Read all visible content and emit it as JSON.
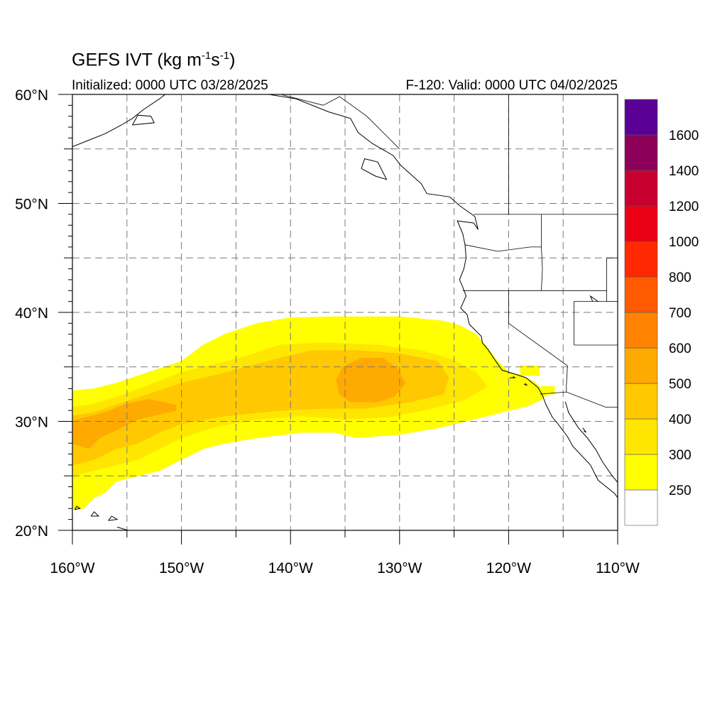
{
  "title": {
    "main": "GEFS IVT (kg m",
    "sup1": "-1",
    "mid": "s",
    "sup2": "-1",
    "close": ")"
  },
  "subtitle_left": "Initialized: 0000 UTC 03/28/2025",
  "subtitle_right": "F-120: Valid: 0000 UTC 04/02/2025",
  "map": {
    "projection": "cylindrical-equidistant",
    "lon_range": [
      -160,
      -110
    ],
    "lat_range": [
      20,
      60
    ],
    "lon_ticks": [
      -160,
      -150,
      -140,
      -130,
      -120,
      -110
    ],
    "lon_labels": [
      "160°W",
      "150°W",
      "140°W",
      "130°W",
      "120°W",
      "110°W"
    ],
    "lat_ticks": [
      20,
      30,
      40,
      50,
      60
    ],
    "lat_labels": [
      "20°N",
      "30°N",
      "40°N",
      "50°N",
      "60°N"
    ],
    "grid_lons": [
      -160,
      -155,
      -150,
      -145,
      -140,
      -135,
      -130,
      -125,
      -120,
      -115,
      -110
    ],
    "grid_lats": [
      20,
      25,
      30,
      35,
      40,
      45,
      50,
      55,
      60
    ],
    "grid_style": "dashed-gray",
    "coastline_color": "#000000"
  },
  "colorbar": {
    "levels": [
      250,
      300,
      400,
      500,
      600,
      700,
      800,
      1000,
      1200,
      1400,
      1600
    ],
    "labels": [
      "250",
      "300",
      "400",
      "500",
      "600",
      "700",
      "800",
      "1000",
      "1200",
      "1400",
      "1600"
    ],
    "colors": [
      "#ffffff",
      "#ffff00",
      "#ffe600",
      "#ffc800",
      "#ffaa00",
      "#ff8200",
      "#ff5a00",
      "#ff2800",
      "#eb0014",
      "#c80032",
      "#8c005a",
      "#5a0096"
    ]
  },
  "ivt_field": {
    "units": "kg m-1 s-1",
    "bands": [
      {
        "level": 250,
        "color": "#ffff00",
        "polygon": [
          [
            -160,
            22
          ],
          [
            -159,
            22
          ],
          [
            -158,
            23
          ],
          [
            -157,
            23.5
          ],
          [
            -156,
            24.5
          ],
          [
            -154,
            25
          ],
          [
            -152,
            25.5
          ],
          [
            -150,
            26.5
          ],
          [
            -148,
            27.5
          ],
          [
            -146,
            28
          ],
          [
            -143,
            28.5
          ],
          [
            -139,
            29
          ],
          [
            -136,
            29
          ],
          [
            -134,
            28.5
          ],
          [
            -130,
            28.8
          ],
          [
            -126,
            29.5
          ],
          [
            -122,
            30.5
          ],
          [
            -118,
            31.5
          ],
          [
            -117,
            32
          ],
          [
            -116.5,
            32.5
          ],
          [
            -117,
            33
          ],
          [
            -117.5,
            33.5
          ],
          [
            -118.8,
            34.2
          ],
          [
            -120,
            34.5
          ],
          [
            -121,
            35.5
          ],
          [
            -122,
            36.8
          ],
          [
            -123,
            38
          ],
          [
            -124.5,
            38.8
          ],
          [
            -126,
            39.2
          ],
          [
            -130,
            39.6
          ],
          [
            -136,
            39.6
          ],
          [
            -140,
            39.5
          ],
          [
            -143,
            39
          ],
          [
            -146,
            38
          ],
          [
            -148,
            37
          ],
          [
            -150,
            35.5
          ],
          [
            -153,
            34.5
          ],
          [
            -156,
            33.5
          ],
          [
            -158,
            33
          ],
          [
            -160,
            32.8
          ]
        ]
      },
      {
        "level": 300,
        "color": "#ffe600",
        "polygon": [
          [
            -160,
            25
          ],
          [
            -158,
            25.5
          ],
          [
            -156,
            26
          ],
          [
            -154,
            26.5
          ],
          [
            -152,
            27.5
          ],
          [
            -150,
            28.5
          ],
          [
            -147,
            29.5
          ],
          [
            -143,
            30.2
          ],
          [
            -139,
            30.5
          ],
          [
            -135,
            30.2
          ],
          [
            -131,
            30.4
          ],
          [
            -127,
            31.2
          ],
          [
            -124,
            32
          ],
          [
            -122,
            33.2
          ],
          [
            -123,
            34.5
          ],
          [
            -125,
            35.6
          ],
          [
            -128,
            36.5
          ],
          [
            -132,
            37
          ],
          [
            -137,
            37.2
          ],
          [
            -141,
            37
          ],
          [
            -144,
            36
          ],
          [
            -147,
            35.2
          ],
          [
            -150,
            34.5
          ],
          [
            -153,
            33.3
          ],
          [
            -156,
            32.2
          ],
          [
            -158,
            31.6
          ],
          [
            -160,
            31.3
          ]
        ]
      },
      {
        "level": 400,
        "color": "#ffc800",
        "polygon": [
          [
            -160,
            26
          ],
          [
            -158,
            26.5
          ],
          [
            -156,
            27.5
          ],
          [
            -154,
            28
          ],
          [
            -152,
            29
          ],
          [
            -150,
            29.8
          ],
          [
            -146,
            30.5
          ],
          [
            -141,
            31
          ],
          [
            -137,
            31.2
          ],
          [
            -133,
            31.2
          ],
          [
            -129,
            31.8
          ],
          [
            -126,
            32.5
          ],
          [
            -125.5,
            34
          ],
          [
            -126.5,
            35.5
          ],
          [
            -130,
            36.2
          ],
          [
            -134,
            36.5
          ],
          [
            -138,
            36.5
          ],
          [
            -141,
            35.8
          ],
          [
            -144,
            35
          ],
          [
            -147,
            34.2
          ],
          [
            -150,
            33.5
          ],
          [
            -153,
            32.5
          ],
          [
            -156,
            31.5
          ],
          [
            -158,
            30.8
          ],
          [
            -160,
            30.5
          ]
        ]
      },
      {
        "level": 500,
        "color": "#ffaa00",
        "polygon": [
          [
            -135.5,
            32.5
          ],
          [
            -134.5,
            31.8
          ],
          [
            -132,
            31.8
          ],
          [
            -130.5,
            32.3
          ],
          [
            -129.5,
            33.5
          ],
          [
            -130.2,
            34.8
          ],
          [
            -131.5,
            35.8
          ],
          [
            -133.5,
            35.8
          ],
          [
            -135.2,
            35
          ],
          [
            -135.8,
            33.8
          ]
        ]
      },
      {
        "level": 500,
        "color": "#ffaa00",
        "polygon": [
          [
            -160,
            28
          ],
          [
            -158.5,
            27.5
          ],
          [
            -157.5,
            28.5
          ],
          [
            -156,
            29.2
          ],
          [
            -154,
            30.2
          ],
          [
            -150.5,
            31
          ],
          [
            -150.5,
            31.5
          ],
          [
            -153,
            32
          ],
          [
            -155,
            31.6
          ],
          [
            -157,
            30.8
          ],
          [
            -159,
            30.3
          ],
          [
            -160,
            30
          ]
        ]
      },
      {
        "level": 250,
        "color": "#ffff00",
        "polygon": [
          [
            -118.9,
            34.2
          ],
          [
            -117.2,
            34.2
          ],
          [
            -117.2,
            35.1
          ],
          [
            -118.9,
            35.1
          ]
        ]
      },
      {
        "level": 250,
        "color": "#ffff00",
        "polygon": [
          [
            -117,
            32.5
          ],
          [
            -115.8,
            32.5
          ],
          [
            -115.8,
            33.2
          ],
          [
            -117,
            33.2
          ]
        ]
      }
    ]
  },
  "coastlines": [
    [
      [
        -124.4,
        40.4
      ],
      [
        -123.9,
        41.5
      ],
      [
        -124.2,
        42.3
      ],
      [
        -124.5,
        43
      ],
      [
        -124.1,
        44
      ],
      [
        -123.9,
        45
      ],
      [
        -124,
        46.2
      ],
      [
        -124.2,
        47.2
      ],
      [
        -124.7,
        48.4
      ],
      [
        -123.2,
        48.2
      ],
      [
        -122.8,
        47.6
      ],
      [
        -123.1,
        48.8
      ],
      [
        -124.5,
        49.8
      ],
      [
        -125.4,
        50.6
      ],
      [
        -127.5,
        50.9
      ],
      [
        -128.0,
        51.8
      ],
      [
        -129.9,
        53.5
      ],
      [
        -130.6,
        54.4
      ],
      [
        -132.5,
        55.5
      ],
      [
        -133.8,
        56.5
      ],
      [
        -134.5,
        57.8
      ],
      [
        -136.5,
        58.4
      ],
      [
        -139.5,
        59.6
      ],
      [
        -142,
        60
      ]
    ],
    [
      [
        -124.4,
        40.4
      ],
      [
        -123.8,
        39.8
      ],
      [
        -123.6,
        38.9
      ],
      [
        -122.5,
        37.8
      ],
      [
        -122.4,
        37.2
      ],
      [
        -121.9,
        36.6
      ],
      [
        -121.3,
        35.7
      ],
      [
        -120.6,
        34.7
      ],
      [
        -119.3,
        34.3
      ],
      [
        -118.4,
        34
      ],
      [
        -117.3,
        33.1
      ],
      [
        -116.9,
        32.4
      ],
      [
        -116.6,
        31.6
      ],
      [
        -116.0,
        30.4
      ],
      [
        -115.5,
        29.8
      ],
      [
        -114.6,
        28.6
      ],
      [
        -114.1,
        27.7
      ],
      [
        -112.5,
        26
      ],
      [
        -111.8,
        24.6
      ],
      [
        -110.3,
        23.4
      ],
      [
        -110,
        23
      ]
    ],
    [
      [
        -114.8,
        31.8
      ],
      [
        -114.5,
        30.8
      ],
      [
        -113.6,
        29.4
      ],
      [
        -112.8,
        28.5
      ],
      [
        -112.0,
        27.4
      ],
      [
        -111.4,
        26.3
      ],
      [
        -110.5,
        25
      ],
      [
        -110,
        24.4
      ]
    ],
    [
      [
        -160,
        55.2
      ],
      [
        -158.5,
        55.8
      ],
      [
        -157,
        56.4
      ],
      [
        -155.5,
        57.2
      ],
      [
        -154.5,
        57.8
      ],
      [
        -153.5,
        58.6
      ],
      [
        -152,
        59.6
      ],
      [
        -151.5,
        60
      ]
    ],
    [
      [
        -154.5,
        57.2
      ],
      [
        -152.5,
        57.4
      ],
      [
        -152.8,
        58.0
      ],
      [
        -154.0,
        58.1
      ],
      [
        -154.5,
        57.2
      ]
    ],
    [
      [
        -133.5,
        53.2
      ],
      [
        -132.2,
        52.5
      ],
      [
        -131.2,
        52.2
      ],
      [
        -132,
        53.8
      ],
      [
        -133.2,
        54.1
      ],
      [
        -133.5,
        53.2
      ]
    ],
    [
      [
        -155.9,
        19.9
      ],
      [
        -155.0,
        19.7
      ],
      [
        -154.9,
        20
      ],
      [
        -155.9,
        20.3
      ]
    ],
    [
      [
        -156.7,
        20.9
      ],
      [
        -155.9,
        21
      ],
      [
        -156.4,
        21.3
      ],
      [
        -156.7,
        20.9
      ]
    ],
    [
      [
        -158.3,
        21.3
      ],
      [
        -157.6,
        21.3
      ],
      [
        -158.0,
        21.7
      ],
      [
        -158.3,
        21.3
      ]
    ],
    [
      [
        -159.8,
        21.9
      ],
      [
        -159.3,
        22.0
      ],
      [
        -159.6,
        22.2
      ],
      [
        -159.8,
        21.9
      ]
    ],
    [
      [
        -119.9,
        34.0
      ],
      [
        -119.4,
        34.0
      ],
      [
        -119.6,
        34.1
      ]
    ],
    [
      [
        -118.6,
        33.4
      ],
      [
        -118.3,
        33.3
      ],
      [
        -118.5,
        33.5
      ]
    ],
    [
      [
        -111.8,
        41.0
      ],
      [
        -112.5,
        41.5
      ],
      [
        -112.3,
        41.0
      ]
    ],
    [
      [
        -113.1,
        29.1
      ],
      [
        -112.9,
        29.0
      ],
      [
        -113.2,
        29.4
      ]
    ]
  ],
  "state_borders": [
    [
      [
        -124.2,
        42
      ],
      [
        -120,
        42
      ],
      [
        -111,
        42
      ]
    ],
    [
      [
        -120,
        42
      ],
      [
        -120,
        39
      ],
      [
        -114.6,
        35.1
      ]
    ],
    [
      [
        -114.6,
        35.1
      ],
      [
        -114.7,
        33.3
      ],
      [
        -114.7,
        32.7
      ]
    ],
    [
      [
        -117.1,
        32.5
      ],
      [
        -114.7,
        32.7
      ],
      [
        -111.1,
        31.3
      ],
      [
        -108,
        31.3
      ]
    ],
    [
      [
        -123.2,
        49
      ],
      [
        -110,
        49
      ]
    ],
    [
      [
        -117,
        49
      ],
      [
        -117,
        46
      ],
      [
        -116.9,
        44
      ],
      [
        -117,
        42
      ]
    ],
    [
      [
        -124,
        46.2
      ],
      [
        -121,
        45.6
      ],
      [
        -118,
        46
      ],
      [
        -117,
        46
      ]
    ],
    [
      [
        -111,
        45
      ],
      [
        -111,
        41
      ],
      [
        -114,
        41
      ],
      [
        -114,
        37
      ]
    ],
    [
      [
        -114,
        37
      ],
      [
        -110,
        37
      ]
    ],
    [
      [
        -111,
        45
      ],
      [
        -110,
        45
      ]
    ],
    [
      [
        -111,
        41
      ],
      [
        -110,
        41
      ]
    ],
    [
      [
        -140.9,
        60
      ],
      [
        -137,
        59
      ],
      [
        -135.5,
        59.8
      ],
      [
        -133,
        58
      ],
      [
        -131,
        56
      ],
      [
        -130,
        55
      ]
    ],
    [
      [
        -120,
        49
      ],
      [
        -120,
        60
      ]
    ]
  ]
}
